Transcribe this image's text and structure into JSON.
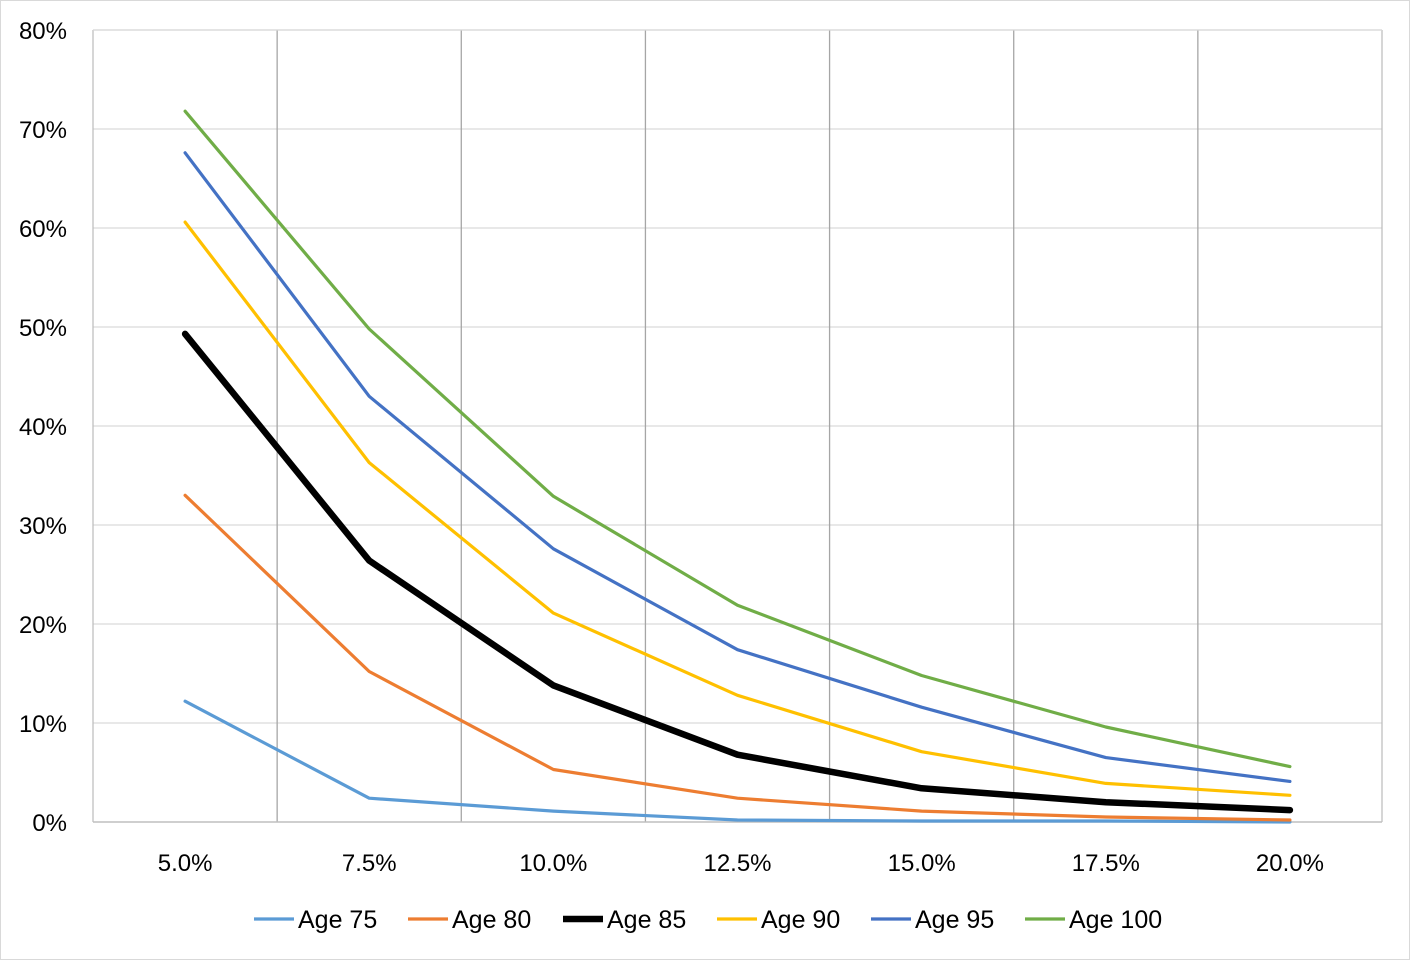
{
  "chart_data": {
    "type": "line",
    "title": "",
    "xlabel": "",
    "ylabel": "",
    "categories": [
      "5.0%",
      "7.5%",
      "10.0%",
      "12.5%",
      "15.0%",
      "17.5%",
      "20.0%"
    ],
    "ylim": [
      0,
      80
    ],
    "yticks": [
      0,
      10,
      20,
      30,
      40,
      50,
      60,
      70,
      80
    ],
    "ytick_labels": [
      "0%",
      "10%",
      "20%",
      "30%",
      "40%",
      "50%",
      "60%",
      "70%",
      "80%"
    ],
    "grid": true,
    "legend_position": "bottom",
    "series": [
      {
        "name": "Age 75",
        "color": "#5b9bd5",
        "emphasis": false,
        "values": [
          12.2,
          2.4,
          1.1,
          0.2,
          0.1,
          0.1,
          0.0
        ]
      },
      {
        "name": "Age 80",
        "color": "#ed7d31",
        "emphasis": false,
        "values": [
          33.0,
          15.2,
          5.3,
          2.4,
          1.1,
          0.5,
          0.2
        ]
      },
      {
        "name": "Age 85",
        "color": "#000000",
        "emphasis": true,
        "values": [
          49.3,
          26.4,
          13.8,
          6.8,
          3.4,
          2.0,
          1.2
        ]
      },
      {
        "name": "Age 90",
        "color": "#ffc000",
        "emphasis": false,
        "values": [
          60.6,
          36.3,
          21.1,
          12.8,
          7.1,
          3.9,
          2.7
        ]
      },
      {
        "name": "Age 95",
        "color": "#4472c4",
        "emphasis": false,
        "values": [
          67.6,
          43.0,
          27.6,
          17.4,
          11.6,
          6.5,
          4.1
        ]
      },
      {
        "name": "Age 100",
        "color": "#70ad47",
        "emphasis": false,
        "values": [
          71.8,
          49.8,
          32.9,
          21.9,
          14.8,
          9.6,
          5.6
        ]
      }
    ]
  }
}
